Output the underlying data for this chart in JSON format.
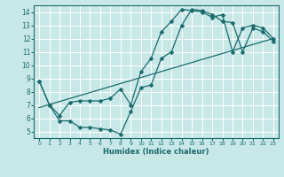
{
  "xlabel": "Humidex (Indice chaleur)",
  "background_color": "#c8e8e8",
  "grid_color": "#ffffff",
  "line_color": "#1a6b6b",
  "xlim": [
    -0.5,
    23.5
  ],
  "ylim": [
    4.5,
    14.5
  ],
  "xticks": [
    0,
    1,
    2,
    3,
    4,
    5,
    6,
    7,
    8,
    9,
    10,
    11,
    12,
    13,
    14,
    15,
    16,
    17,
    18,
    19,
    20,
    21,
    22,
    23
  ],
  "yticks": [
    5,
    6,
    7,
    8,
    9,
    10,
    11,
    12,
    13,
    14
  ],
  "series1_x": [
    0,
    1,
    2,
    3,
    4,
    5,
    6,
    7,
    8,
    9,
    10,
    11,
    12,
    13,
    14,
    15,
    16,
    17,
    18,
    19,
    20,
    21,
    22,
    23
  ],
  "series1_y": [
    8.8,
    7.0,
    5.8,
    5.8,
    5.3,
    5.3,
    5.2,
    5.1,
    4.8,
    6.5,
    8.3,
    8.5,
    10.5,
    11.0,
    13.0,
    14.2,
    14.1,
    13.8,
    13.3,
    13.2,
    11.0,
    12.8,
    12.5,
    11.8
  ],
  "series2_x": [
    0,
    1,
    2,
    3,
    4,
    5,
    6,
    7,
    8,
    9,
    10,
    11,
    12,
    13,
    14,
    15,
    16,
    17,
    18,
    19,
    20,
    21,
    22,
    23
  ],
  "series2_y": [
    8.8,
    7.0,
    6.2,
    7.2,
    7.3,
    7.3,
    7.3,
    7.5,
    8.2,
    7.0,
    9.5,
    10.5,
    12.5,
    13.3,
    14.2,
    14.1,
    14.0,
    13.6,
    13.8,
    11.0,
    12.8,
    13.0,
    12.8,
    12.0
  ],
  "series3_x": [
    0,
    23
  ],
  "series3_y": [
    6.8,
    12.0
  ]
}
